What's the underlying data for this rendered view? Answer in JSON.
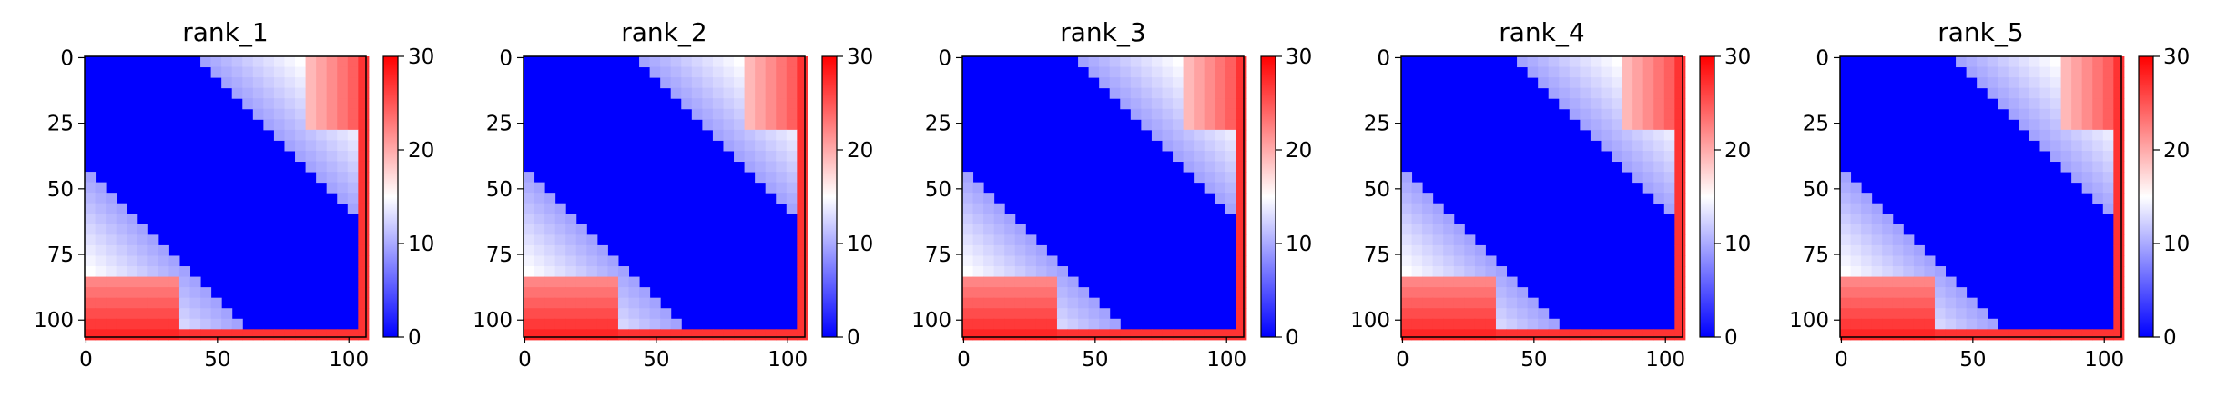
{
  "chart_data": [
    {
      "type": "heatmap",
      "title": "rank_1",
      "matrix_size": 107,
      "x_ticks": [
        "0",
        "50",
        "100"
      ],
      "x_tick_values": [
        0,
        50,
        100
      ],
      "y_ticks": [
        "0",
        "25",
        "50",
        "75",
        "100"
      ],
      "y_tick_values": [
        0,
        25,
        50,
        75,
        100
      ],
      "colorbar": {
        "min": 0,
        "max": 30,
        "ticks": [
          "0",
          "10",
          "20",
          "30"
        ],
        "tick_values": [
          0,
          10,
          20,
          30
        ],
        "colormap": "bwr"
      }
    },
    {
      "type": "heatmap",
      "title": "rank_2",
      "matrix_size": 107,
      "x_ticks": [
        "0",
        "50",
        "100"
      ],
      "x_tick_values": [
        0,
        50,
        100
      ],
      "y_ticks": [
        "0",
        "25",
        "50",
        "75",
        "100"
      ],
      "y_tick_values": [
        0,
        25,
        50,
        75,
        100
      ],
      "colorbar": {
        "min": 0,
        "max": 30,
        "ticks": [
          "0",
          "10",
          "20",
          "30"
        ],
        "tick_values": [
          0,
          10,
          20,
          30
        ],
        "colormap": "bwr"
      }
    },
    {
      "type": "heatmap",
      "title": "rank_3",
      "matrix_size": 107,
      "x_ticks": [
        "0",
        "50",
        "100"
      ],
      "x_tick_values": [
        0,
        50,
        100
      ],
      "y_ticks": [
        "0",
        "25",
        "50",
        "75",
        "100"
      ],
      "y_tick_values": [
        0,
        25,
        50,
        75,
        100
      ],
      "colorbar": {
        "min": 0,
        "max": 30,
        "ticks": [
          "0",
          "10",
          "20",
          "30"
        ],
        "tick_values": [
          0,
          10,
          20,
          30
        ],
        "colormap": "bwr"
      }
    },
    {
      "type": "heatmap",
      "title": "rank_4",
      "matrix_size": 107,
      "x_ticks": [
        "0",
        "50",
        "100"
      ],
      "x_tick_values": [
        0,
        50,
        100
      ],
      "y_ticks": [
        "0",
        "25",
        "50",
        "75",
        "100"
      ],
      "y_tick_values": [
        0,
        25,
        50,
        75,
        100
      ],
      "colorbar": {
        "min": 0,
        "max": 30,
        "ticks": [
          "0",
          "10",
          "20",
          "30"
        ],
        "tick_values": [
          0,
          10,
          20,
          30
        ],
        "colormap": "bwr"
      }
    },
    {
      "type": "heatmap",
      "title": "rank_5",
      "matrix_size": 107,
      "x_ticks": [
        "0",
        "50",
        "100"
      ],
      "x_tick_values": [
        0,
        50,
        100
      ],
      "y_ticks": [
        "0",
        "25",
        "50",
        "75",
        "100"
      ],
      "y_tick_values": [
        0,
        25,
        50,
        75,
        100
      ],
      "colorbar": {
        "min": 0,
        "max": 30,
        "ticks": [
          "0",
          "10",
          "20",
          "30"
        ],
        "tick_values": [
          0,
          10,
          20,
          30
        ],
        "colormap": "bwr"
      }
    }
  ]
}
